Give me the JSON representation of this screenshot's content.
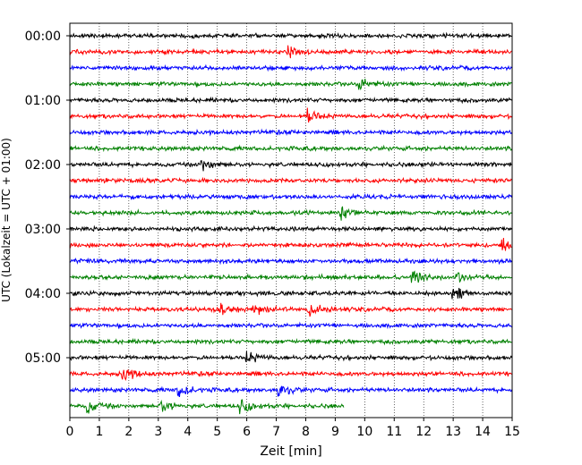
{
  "chart_data": {
    "type": "line",
    "title": "",
    "xlabel": "Zeit  [min]",
    "ylabel": "UTC (Lokalzeit = UTC + 01:00)",
    "xlim": [
      0,
      15
    ],
    "x_ticks": [
      "0",
      "1",
      "2",
      "3",
      "4",
      "5",
      "6",
      "7",
      "8",
      "9",
      "10",
      "11",
      "12",
      "13",
      "14",
      "15"
    ],
    "y_tick_labels": [
      "00:00",
      "01:00",
      "02:00",
      "03:00",
      "04:00",
      "05:00"
    ],
    "row_interval_minutes": 15,
    "grid": "vertical dotted lines at each minute",
    "colors": [
      "#000000",
      "#ff0000",
      "#0000ff",
      "#008000"
    ],
    "traces": [
      {
        "start": "00:00",
        "color": "#000000",
        "duration_min": 15,
        "events": []
      },
      {
        "start": "00:15",
        "color": "#ff0000",
        "duration_min": 15,
        "events": [
          7.4
        ]
      },
      {
        "start": "00:30",
        "color": "#0000ff",
        "duration_min": 15,
        "events": []
      },
      {
        "start": "00:45",
        "color": "#008000",
        "duration_min": 15,
        "events": [
          9.8
        ]
      },
      {
        "start": "01:00",
        "color": "#000000",
        "duration_min": 15,
        "events": []
      },
      {
        "start": "01:15",
        "color": "#ff0000",
        "duration_min": 15,
        "events": [
          8.1
        ]
      },
      {
        "start": "01:30",
        "color": "#0000ff",
        "duration_min": 15,
        "events": []
      },
      {
        "start": "01:45",
        "color": "#008000",
        "duration_min": 15,
        "events": []
      },
      {
        "start": "02:00",
        "color": "#000000",
        "duration_min": 15,
        "events": [
          4.5
        ]
      },
      {
        "start": "02:15",
        "color": "#ff0000",
        "duration_min": 15,
        "events": []
      },
      {
        "start": "02:30",
        "color": "#0000ff",
        "duration_min": 15,
        "events": []
      },
      {
        "start": "02:45",
        "color": "#008000",
        "duration_min": 15,
        "events": [
          9.2
        ]
      },
      {
        "start": "03:00",
        "color": "#000000",
        "duration_min": 15,
        "events": []
      },
      {
        "start": "03:15",
        "color": "#ff0000",
        "duration_min": 15,
        "events": [
          14.7
        ]
      },
      {
        "start": "03:30",
        "color": "#0000ff",
        "duration_min": 15,
        "events": []
      },
      {
        "start": "03:45",
        "color": "#008000",
        "duration_min": 15,
        "events": [
          11.6,
          13.1
        ]
      },
      {
        "start": "04:00",
        "color": "#000000",
        "duration_min": 15,
        "events": [
          13.0
        ]
      },
      {
        "start": "04:15",
        "color": "#ff0000",
        "duration_min": 15,
        "events": [
          5.1,
          6.2,
          8.1
        ]
      },
      {
        "start": "04:30",
        "color": "#0000ff",
        "duration_min": 15,
        "events": []
      },
      {
        "start": "04:45",
        "color": "#008000",
        "duration_min": 15,
        "events": []
      },
      {
        "start": "05:00",
        "color": "#000000",
        "duration_min": 15,
        "events": [
          6.0
        ]
      },
      {
        "start": "05:15",
        "color": "#ff0000",
        "duration_min": 15,
        "events": [
          1.8
        ]
      },
      {
        "start": "05:30",
        "color": "#0000ff",
        "duration_min": 15,
        "events": [
          3.7,
          7.1
        ]
      },
      {
        "start": "05:45",
        "color": "#008000",
        "duration_min": 9.3,
        "events": [
          0.6,
          3.1,
          5.8
        ]
      }
    ]
  }
}
